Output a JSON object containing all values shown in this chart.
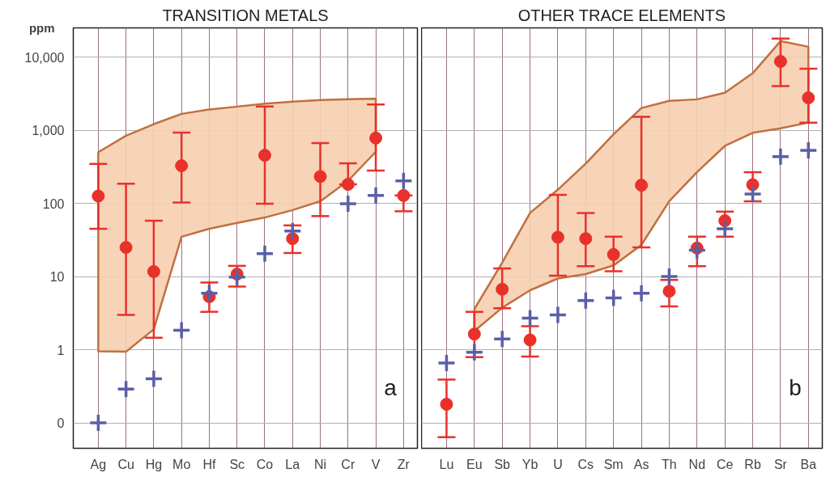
{
  "chart_data": [
    {
      "type": "scatter",
      "title": "TRANSITION METALS",
      "ylabel": "ppm",
      "annotations": [
        "a"
      ],
      "log": true,
      "grid": true,
      "categories": [
        "Ag",
        "Cu",
        "Hg",
        "Mo",
        "Hf",
        "Sc",
        "Co",
        "La",
        "Ni",
        "Cr",
        "V",
        "Zr"
      ],
      "ylim": [
        0.045,
        25000
      ],
      "yticks": [
        {
          "value": 0.1,
          "label": "0"
        },
        1,
        10,
        100,
        {
          "value": 1000,
          "label": "1,000"
        },
        {
          "value": 10000,
          "label": "10,000"
        }
      ],
      "series": [
        {
          "type": "area",
          "color": "#f6cfb0",
          "values": [
            null,
            null,
            null,
            null,
            null,
            null,
            null,
            null,
            null,
            null,
            null,
            null
          ],
          "lower": [
            0.95,
            0.94,
            1.9,
            35,
            45,
            54,
            64,
            81,
            107,
            203,
            507,
            null
          ],
          "upper": [
            500,
            840,
            1210,
            1670,
            1920,
            2100,
            2300,
            2460,
            2590,
            2650,
            2700,
            null
          ]
        },
        {
          "color": "#5a5fa8",
          "marker": "cross",
          "values": [
            0.1,
            0.29,
            0.4,
            1.85,
            5.9,
            9.8,
            20.5,
            42,
            null,
            99,
            128,
            203
          ]
        },
        {
          "color": "#e8312a",
          "marker": "circle",
          "values": [
            126,
            25,
            11.7,
            327,
            5.3,
            10.8,
            454,
            33,
            233,
            182,
            780,
            128
          ],
          "errors": [
            [
              45,
              345
            ],
            [
              3.0,
              185
            ],
            [
              1.46,
              58
            ],
            [
              103,
              930
            ],
            [
              3.3,
              8.3
            ],
            [
              7.3,
              14
            ],
            [
              99,
              2100
            ],
            [
              21,
              50
            ],
            [
              67,
              668
            ],
            [
              182,
              352
            ],
            [
              280,
              2240
            ],
            [
              78,
              128
            ]
          ]
        }
      ]
    },
    {
      "type": "scatter",
      "title": "OTHER TRACE ELEMENTS",
      "annotations": [
        "b"
      ],
      "log": true,
      "grid": true,
      "tick_labels": "x",
      "categories": [
        "Lu",
        "Eu",
        "Sb",
        "Yb",
        "U",
        "Cs",
        "Sm",
        "As",
        "Th",
        "Nd",
        "Ce",
        "Rb",
        "Sr",
        "Ba"
      ],
      "ylim": [
        0.045,
        25000
      ],
      "yticks": [
        0.1,
        1,
        10,
        100,
        1000,
        10000
      ],
      "series": [
        {
          "type": "area",
          "color": "#f6cfb0",
          "values": [
            null,
            null,
            null,
            null,
            null,
            null,
            null,
            null,
            null,
            null,
            null,
            null,
            null,
            null
          ],
          "lower": [
            null,
            1.8,
            3.75,
            6.5,
            9.4,
            10.8,
            14.2,
            27,
            107,
            267,
            610,
            920,
            1060,
            1270
          ],
          "upper": [
            null,
            3.6,
            15.5,
            74,
            154,
            350,
            880,
            2010,
            2520,
            2640,
            3240,
            6000,
            16500,
            13800
          ]
        },
        {
          "color": "#5a5fa8",
          "marker": "cross",
          "values": [
            0.66,
            0.92,
            1.4,
            2.7,
            3.0,
            4.7,
            5.1,
            5.9,
            10,
            22.9,
            45,
            134,
            434,
            531
          ]
        },
        {
          "color": "#e8312a",
          "marker": "circle",
          "values": [
            0.18,
            1.64,
            6.7,
            1.36,
            34.5,
            33,
            20,
            177,
            6.3,
            24.5,
            58,
            180,
            8700,
            2770
          ],
          "errors": [
            [
              0.064,
              0.39
            ],
            [
              0.79,
              3.3
            ],
            [
              3.7,
              12.9
            ],
            [
              0.81,
              2.1
            ],
            [
              10.3,
              131
            ],
            [
              13.9,
              74
            ],
            [
              11.8,
              35
            ],
            [
              25,
              1520
            ],
            [
              3.9,
              9
            ],
            [
              13.9,
              35
            ],
            [
              35,
              77
            ],
            [
              107,
              267
            ],
            [
              4000,
              17800
            ],
            [
              1270,
              6930
            ]
          ]
        }
      ]
    }
  ]
}
